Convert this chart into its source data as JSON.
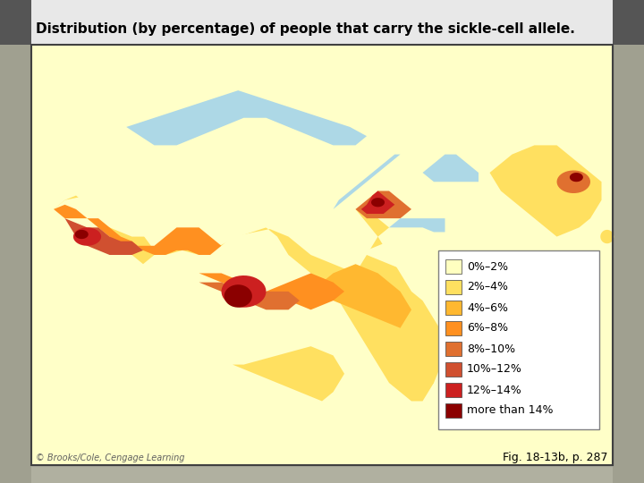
{
  "title": "Distribution (by percentage) of people that carry the sickle-cell allele.",
  "caption": "Fig. 18-13b, p. 287",
  "copyright": "© Brooks/Cole, Cengage Learning",
  "legend_labels": [
    "0%–2%",
    "2%–4%",
    "4%–6%",
    "6%–8%",
    "8%–10%",
    "10%–12%",
    "12%–14%",
    "more than 14%"
  ],
  "legend_colors": [
    "#FFFFC0",
    "#FFE060",
    "#FFB830",
    "#FF9020",
    "#E07030",
    "#D05030",
    "#CC2020",
    "#8B0000"
  ],
  "bg_outer": "#B0B0A0",
  "bg_sidebar": "#A0A090",
  "bg_map_area": "#ADD8E6",
  "title_fontsize": 11,
  "caption_fontsize": 9,
  "copyright_fontsize": 7,
  "fig_width": 7.2,
  "fig_height": 5.4,
  "dpi": 100
}
